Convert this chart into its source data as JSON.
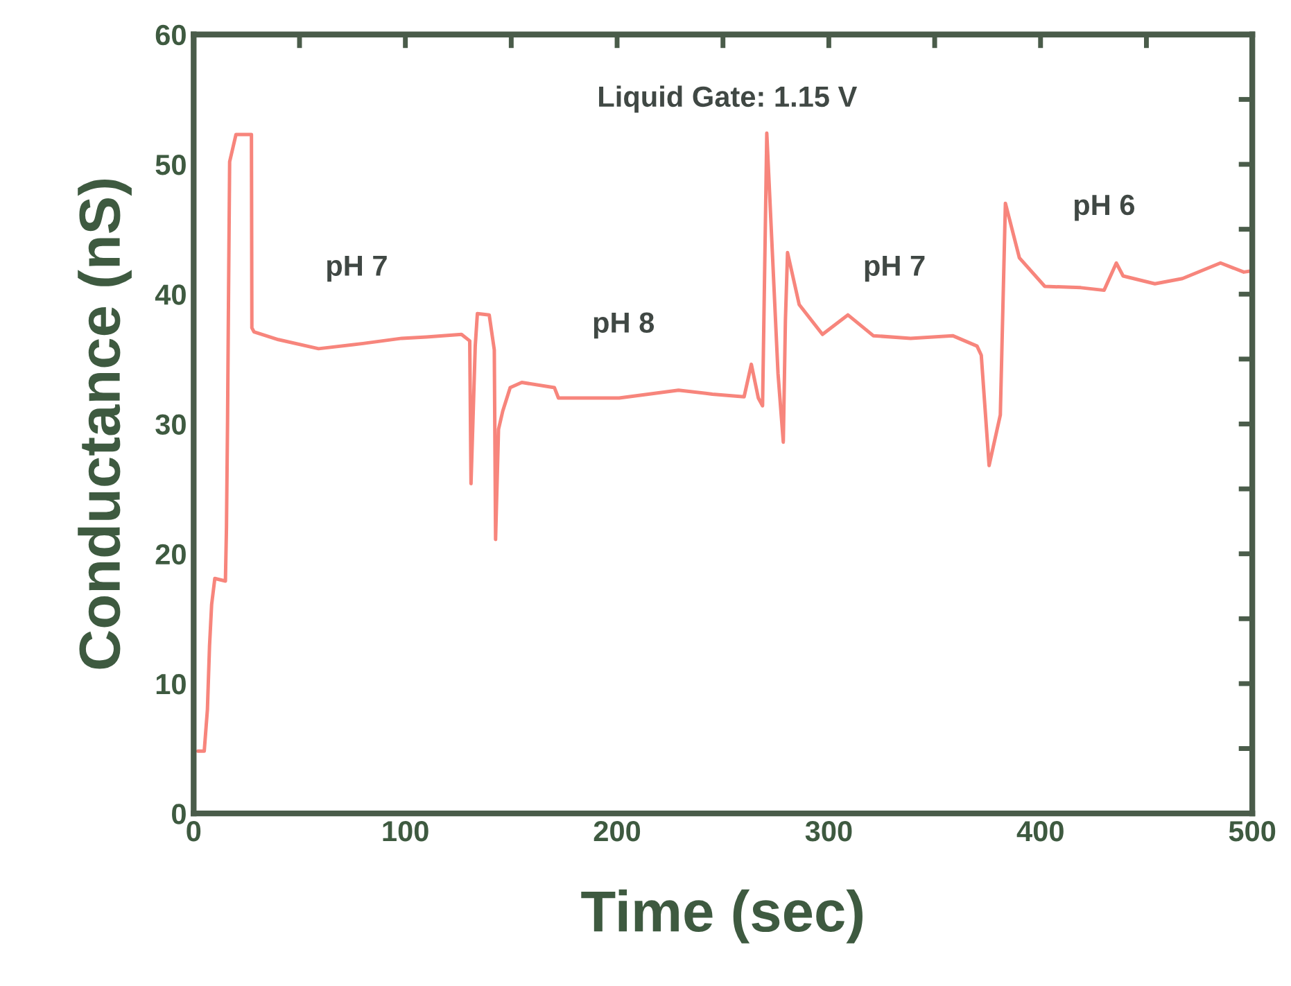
{
  "chart_data": {
    "type": "line",
    "xlabel": "Time (sec)",
    "ylabel": "Conductance (nS)",
    "xlim": [
      0,
      500
    ],
    "ylim": [
      0,
      60
    ],
    "xticks": [
      0,
      {
        "value": 50,
        "label": null
      },
      100,
      {
        "value": 150,
        "label": null
      },
      200,
      {
        "value": 250,
        "label": null
      },
      300,
      {
        "value": 350,
        "label": null
      },
      400,
      {
        "value": 450,
        "label": null
      },
      500
    ],
    "yticks": [
      0,
      {
        "value": 5,
        "label": null
      },
      10,
      {
        "value": 15,
        "label": null
      },
      20,
      {
        "value": 25,
        "label": null
      },
      30,
      {
        "value": 35,
        "label": null
      },
      40,
      {
        "value": 45,
        "label": null
      },
      50,
      {
        "value": 55,
        "label": null
      },
      60
    ],
    "grid": false,
    "legend": false,
    "marker": "none",
    "line_style": "solid",
    "annotations": [
      "Liquid Gate: 1.15 V",
      "pH 7",
      "pH 8",
      "pH 7",
      "pH 6"
    ],
    "series": [
      {
        "color": "#f7857c",
        "x": [
          2,
          5,
          6.5,
          7.5,
          8.5,
          10,
          15,
          15.5,
          16,
          16.5,
          17,
          20,
          27.3,
          27.5,
          28.5,
          40,
          59,
          80,
          98.3,
          110,
          126.5,
          130.4,
          131,
          133,
          134,
          139.6,
          142,
          142.6,
          144,
          146,
          149.5,
          155,
          170.4,
          172.3,
          201,
          229,
          245,
          260,
          263.4,
          266.7,
          268.7,
          270.7,
          276,
          278.5,
          279.5,
          280.5,
          286,
          297,
          309,
          321,
          338.6,
          358.5,
          370,
          372,
          375.7,
          381,
          383.4,
          390,
          402,
          419,
          430,
          435.8,
          439,
          454,
          467,
          485,
          496,
          500
        ],
        "values": [
          4.8,
          4.8,
          8,
          12.9,
          16.1,
          18.1,
          17.9,
          22,
          30,
          40.4,
          50.2,
          52.3,
          52.3,
          37.4,
          37.1,
          36.5,
          35.8,
          36.2,
          36.6,
          36.7,
          36.9,
          36.4,
          25.4,
          36,
          38.5,
          38.4,
          35.7,
          21.1,
          29.6,
          31,
          32.8,
          33.2,
          32.8,
          32.0,
          32.0,
          32.6,
          32.3,
          32.1,
          34.6,
          32,
          31.4,
          52.4,
          33.9,
          28.6,
          38,
          43.2,
          39.2,
          36.9,
          38.4,
          36.8,
          36.6,
          36.8,
          36.0,
          35.3,
          26.8,
          30.7,
          47.0,
          42.8,
          40.6,
          40.5,
          40.3,
          42.4,
          41.4,
          40.8,
          41.2,
          42.4,
          41.7,
          41.8
        ]
      }
    ]
  }
}
